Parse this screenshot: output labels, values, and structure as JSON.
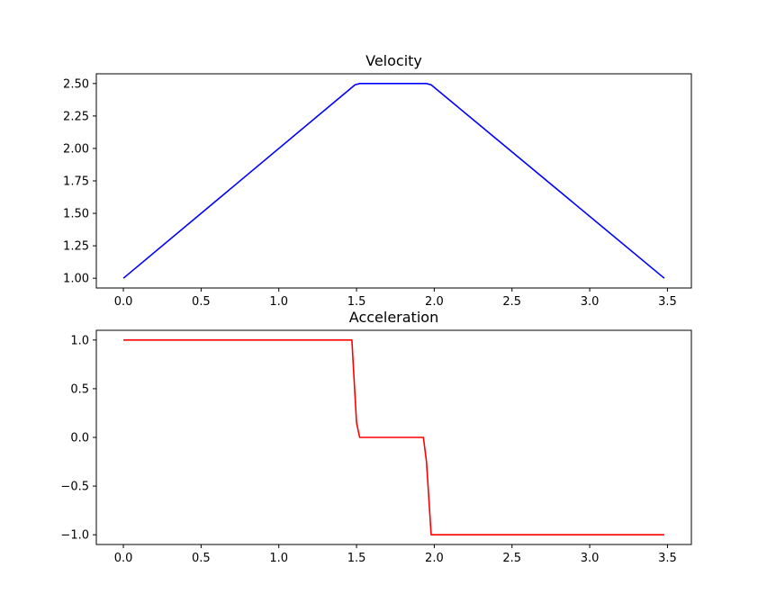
{
  "chart_data": [
    {
      "type": "line",
      "title": "Velocity",
      "xlabel": "",
      "ylabel": "",
      "xlim": [
        -0.174,
        3.654
      ],
      "ylim": [
        0.925,
        2.575
      ],
      "xticks": [
        0.0,
        0.5,
        1.0,
        1.5,
        2.0,
        2.5,
        3.0,
        3.5
      ],
      "xtick_labels": [
        "0.0",
        "0.5",
        "1.0",
        "1.5",
        "2.0",
        "2.5",
        "3.0",
        "3.5"
      ],
      "yticks": [
        1.0,
        1.25,
        1.5,
        1.75,
        2.0,
        2.25,
        2.5
      ],
      "ytick_labels": [
        "1.00",
        "1.25",
        "1.50",
        "1.75",
        "2.00",
        "2.25",
        "2.50"
      ],
      "series": [
        {
          "name": "velocity",
          "color": "#0000ff",
          "x": [
            0.0,
            1.49,
            1.52,
            1.95,
            1.98,
            3.48
          ],
          "y": [
            1.0,
            2.49,
            2.5,
            2.5,
            2.49,
            1.0
          ]
        }
      ]
    },
    {
      "type": "line",
      "title": "Acceleration",
      "xlabel": "",
      "ylabel": "",
      "xlim": [
        -0.174,
        3.654
      ],
      "ylim": [
        -1.1,
        1.1
      ],
      "xticks": [
        0.0,
        0.5,
        1.0,
        1.5,
        2.0,
        2.5,
        3.0,
        3.5
      ],
      "xtick_labels": [
        "0.0",
        "0.5",
        "1.0",
        "1.5",
        "2.0",
        "2.5",
        "3.0",
        "3.5"
      ],
      "yticks": [
        1.0,
        0.5,
        0.0,
        -0.5,
        -1.0
      ],
      "ytick_labels": [
        "1.0",
        "0.5",
        "0.0",
        "−0.5",
        "−1.0"
      ],
      "series": [
        {
          "name": "acceleration",
          "color": "#ff0000",
          "x": [
            0.0,
            1.47,
            1.5,
            1.52,
            1.93,
            1.95,
            1.98,
            3.48
          ],
          "y": [
            1.0,
            1.0,
            0.15,
            0.0,
            0.0,
            -0.25,
            -1.0,
            -1.0
          ]
        }
      ]
    }
  ]
}
